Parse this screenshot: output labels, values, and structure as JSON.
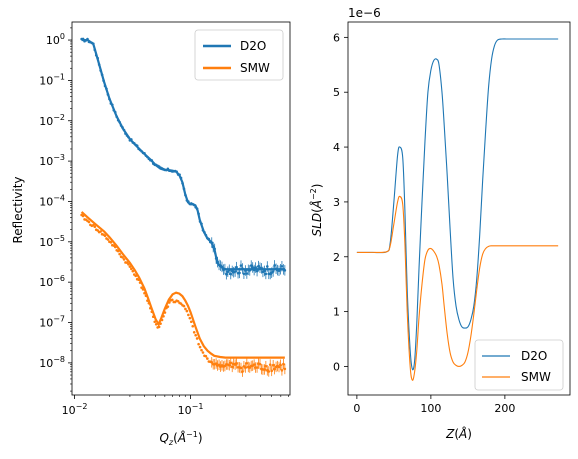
{
  "chart_data": [
    {
      "type": "line",
      "xlabel": "Q_z(Å^-1)",
      "ylabel": "Reflectivity",
      "x_scale": "log",
      "y_scale": "log",
      "xlim": [
        0.0095,
        0.72
      ],
      "ylim": [
        1.6e-09,
        2.8
      ],
      "x_ticks": [
        {
          "value": 0.01,
          "base": "10",
          "exp": "−2"
        },
        {
          "value": 0.1,
          "base": "10",
          "exp": "−1"
        }
      ],
      "y_ticks": [
        {
          "value": 1e-08,
          "base": "10",
          "exp": "−8"
        },
        {
          "value": 1e-07,
          "base": "10",
          "exp": "−7"
        },
        {
          "value": 1e-06,
          "base": "10",
          "exp": "−6"
        },
        {
          "value": 1e-05,
          "base": "10",
          "exp": "−5"
        },
        {
          "value": 0.0001,
          "base": "10",
          "exp": "−4"
        },
        {
          "value": 0.001,
          "base": "10",
          "exp": "−3"
        },
        {
          "value": 0.01,
          "base": "10",
          "exp": "−2"
        },
        {
          "value": 0.1,
          "base": "10",
          "exp": "−1"
        },
        {
          "value": 1,
          "base": "10",
          "exp": "0"
        }
      ],
      "legend_position": "top-right",
      "series": [
        {
          "name": "D2O",
          "color": "#1f77b4",
          "x": [
            0.0115,
            0.013,
            0.0145,
            0.016,
            0.018,
            0.02,
            0.023,
            0.026,
            0.03,
            0.035,
            0.04,
            0.045,
            0.05,
            0.055,
            0.06,
            0.065,
            0.07,
            0.075,
            0.08,
            0.085,
            0.09,
            0.095,
            0.1,
            0.105,
            0.11,
            0.115,
            0.12,
            0.13,
            0.14,
            0.15,
            0.16,
            0.17,
            0.18,
            0.19,
            0.2,
            0.22,
            0.25,
            0.3,
            0.35,
            0.4,
            0.5,
            0.6,
            0.65
          ],
          "y": [
            1.0,
            1.0,
            0.8,
            0.3,
            0.09,
            0.035,
            0.013,
            0.0065,
            0.0035,
            0.0022,
            0.0015,
            0.0011,
            0.0008,
            0.00065,
            0.0006,
            0.0006,
            0.00058,
            0.00055,
            0.00045,
            0.0003,
            0.00015,
            9.5e-05,
            8.5e-05,
            8.5e-05,
            8e-05,
            6e-05,
            3.5e-05,
            1.8e-05,
            1.2e-05,
            1e-05,
            7e-06,
            3e-06,
            2.5e-06,
            2.2e-06,
            2.1e-06,
            2.1e-06,
            2.1e-06,
            2.1e-06,
            2.1e-06,
            2.1e-06,
            2.1e-06,
            2.1e-06,
            2.1e-06
          ]
        },
        {
          "name": "SMW",
          "color": "#ff7f0e",
          "x": [
            0.0115,
            0.013,
            0.015,
            0.018,
            0.02,
            0.023,
            0.026,
            0.03,
            0.033,
            0.036,
            0.04,
            0.043,
            0.046,
            0.05,
            0.053,
            0.056,
            0.06,
            0.065,
            0.07,
            0.075,
            0.08,
            0.085,
            0.09,
            0.095,
            0.1,
            0.11,
            0.12,
            0.13,
            0.14,
            0.15,
            0.16,
            0.18,
            0.2,
            0.25,
            0.3,
            0.35,
            0.4,
            0.5,
            0.6,
            0.65
          ],
          "y": [
            5.5e-05,
            4e-05,
            2.8e-05,
            1.8e-05,
            1.3e-05,
            8e-06,
            5e-06,
            3e-06,
            2e-06,
            1.3e-06,
            7e-07,
            4e-07,
            2.3e-07,
            1.2e-07,
            9e-08,
            1.3e-07,
            2.2e-07,
            3.7e-07,
            5e-07,
            5.5e-07,
            5.2e-07,
            4.5e-07,
            3.5e-07,
            2.6e-07,
            1.8e-07,
            8e-08,
            4e-08,
            2.6e-08,
            2e-08,
            1.7e-08,
            1.5e-08,
            1.4e-08,
            1.35e-08,
            1.35e-08,
            1.35e-08,
            1.35e-08,
            1.35e-08,
            1.35e-08,
            1.35e-08,
            1.35e-08
          ]
        }
      ]
    },
    {
      "type": "line",
      "xlabel": "Z(Å)",
      "ylabel": "SLD(Å^-2)",
      "y_offset_label": "1e−6",
      "y_multiplier": 1e-06,
      "xlim": [
        -12,
        288
      ],
      "ylim": [
        -0.52,
        6.28
      ],
      "x_ticks": [
        "0",
        "100",
        "200"
      ],
      "y_ticks": [
        "0",
        "1",
        "2",
        "3",
        "4",
        "5",
        "6"
      ],
      "legend_position": "bottom-right",
      "series": [
        {
          "name": "D2O",
          "color": "#1f77b4",
          "x": [
            0,
            20,
            40,
            45,
            50,
            55,
            58,
            62,
            65,
            68,
            72,
            75,
            78,
            81,
            84,
            88,
            92,
            96,
            100,
            104,
            108,
            111,
            115,
            118,
            122,
            126,
            130,
            134,
            138,
            142,
            146,
            150,
            154,
            158,
            162,
            166,
            170,
            174,
            178,
            182,
            186,
            190,
            196,
            202,
            210,
            230,
            260,
            272
          ],
          "y": [
            2.08,
            2.08,
            2.09,
            2.25,
            3.0,
            3.85,
            4.0,
            3.8,
            2.8,
            1.4,
            0.3,
            -0.05,
            0.1,
            0.8,
            1.8,
            3.0,
            4.1,
            5.0,
            5.4,
            5.58,
            5.6,
            5.5,
            5.0,
            4.4,
            3.5,
            2.5,
            1.6,
            1.1,
            0.85,
            0.72,
            0.7,
            0.72,
            0.85,
            1.1,
            1.6,
            2.4,
            3.4,
            4.3,
            5.1,
            5.6,
            5.85,
            5.95,
            5.97,
            5.97,
            5.97,
            5.97,
            5.97,
            5.97
          ]
        },
        {
          "name": "SMW",
          "color": "#ff7f0e",
          "x": [
            0,
            20,
            40,
            45,
            50,
            55,
            58,
            62,
            65,
            68,
            72,
            75,
            78,
            81,
            84,
            88,
            92,
            96,
            100,
            104,
            108,
            111,
            115,
            118,
            122,
            126,
            130,
            134,
            138,
            142,
            146,
            150,
            154,
            158,
            162,
            166,
            170,
            174,
            178,
            182,
            186,
            190,
            196,
            202,
            210,
            230,
            260,
            272
          ],
          "y": [
            2.08,
            2.08,
            2.09,
            2.2,
            2.6,
            3.0,
            3.1,
            2.95,
            2.2,
            1.0,
            0.0,
            -0.25,
            -0.1,
            0.3,
            0.9,
            1.5,
            1.95,
            2.12,
            2.15,
            2.1,
            2.0,
            1.85,
            1.5,
            1.1,
            0.6,
            0.25,
            0.08,
            0.02,
            0.0,
            0.02,
            0.08,
            0.25,
            0.55,
            0.95,
            1.4,
            1.8,
            2.05,
            2.15,
            2.19,
            2.2,
            2.2,
            2.2,
            2.2,
            2.2,
            2.2,
            2.2,
            2.2,
            2.2
          ]
        }
      ]
    }
  ]
}
